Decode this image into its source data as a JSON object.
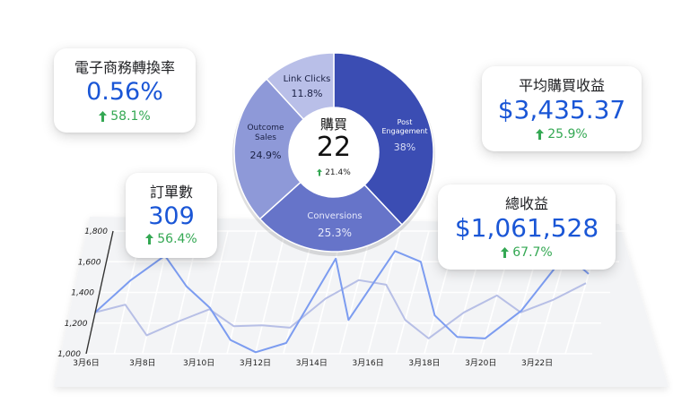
{
  "colors": {
    "accent_blue": "#1a56d6",
    "positive_green": "#34a853",
    "line_primary": "#7c9cf0",
    "line_secondary": "#b7bfe6",
    "seg_post": "#3b4db3",
    "seg_conversions": "#6674c9",
    "seg_outcome": "#8e99d8",
    "seg_link": "#b9bfe8"
  },
  "kpis": {
    "conversion_rate": {
      "label": "電子商務轉換率",
      "value": "0.56%",
      "change": "58.1%",
      "change_icon": "up-arrow-icon"
    },
    "orders": {
      "label": "訂單數",
      "value": "309",
      "change": "56.4%",
      "change_icon": "up-arrow-icon"
    },
    "avg_purchase": {
      "label": "平均購買收益",
      "value": "$3,435.37",
      "change": "25.9%",
      "change_icon": "up-arrow-icon"
    },
    "total_revenue": {
      "label": "總收益",
      "value": "$1,061,528",
      "change": "67.7%",
      "change_icon": "up-arrow-icon"
    }
  },
  "donut": {
    "center": {
      "title": "購買",
      "value": "22",
      "change": "21.4%",
      "change_icon": "up-arrow-icon"
    },
    "segments": [
      {
        "label": "Post Engagement",
        "pct_text": "38%",
        "value": 38
      },
      {
        "label": "Conversions",
        "pct_text": "25.3%",
        "value": 25.3
      },
      {
        "label": "Outcome Sales",
        "pct_text": "24.9%",
        "value": 24.9
      },
      {
        "label": "Link Clicks",
        "pct_text": "11.8%",
        "value": 11.8
      }
    ]
  },
  "chart_data": {
    "type": "line",
    "x": [
      "3月6日",
      "3月7日",
      "3月8日",
      "3月9日",
      "3月10日",
      "3月11日",
      "3月12日",
      "3月13日",
      "3月14日",
      "3月15日",
      "3月16日",
      "3月17日",
      "3月18日",
      "3月19日",
      "3月20日",
      "3月21日",
      "3月22日",
      "3月23日"
    ],
    "x_tick_labels": [
      "3月6日",
      "3月8日",
      "3月10日",
      "3月12日",
      "3月14日",
      "3月16日",
      "3月18日",
      "3月20日",
      "3月22日"
    ],
    "y_tick_labels": [
      "1,000",
      "1,200",
      "1,400",
      "1,600",
      "1,800"
    ],
    "ylim": [
      1000,
      1800
    ],
    "grid": true,
    "series": [
      {
        "values": [
          1270,
          1480,
          1640,
          1440,
          1300,
          1090,
          1010,
          1070,
          1620,
          1220,
          1670,
          1600,
          1250,
          1110,
          1100,
          1280,
          1650,
          1520
        ]
      },
      {
        "values": [
          1270,
          1320,
          1120,
          1210,
          1290,
          1180,
          1185,
          1170,
          1360,
          1480,
          1450,
          1220,
          1100,
          1270,
          1380,
          1270,
          1350,
          1460
        ]
      }
    ]
  }
}
